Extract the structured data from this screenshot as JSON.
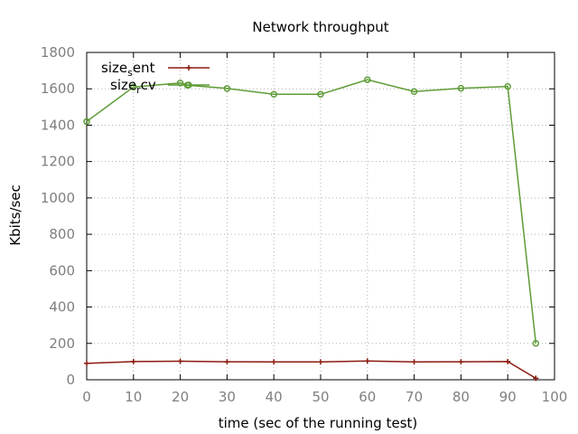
{
  "chart_data": {
    "type": "line",
    "title": "Network throughput",
    "xlabel": "time (sec of the running test)",
    "ylabel": "Kbits/sec",
    "xlim": [
      0,
      100
    ],
    "ylim": [
      0,
      1800
    ],
    "xticks": [
      "0",
      "10",
      "20",
      "30",
      "40",
      "50",
      "60",
      "70",
      "80",
      "90",
      "100"
    ],
    "yticks": [
      "0",
      "200",
      "400",
      "600",
      "800",
      "1000",
      "1200",
      "1400",
      "1600",
      "1800"
    ],
    "grid": true,
    "legend_position": "top-left",
    "series": [
      {
        "name": "size_sent",
        "legend": {
          "base": "size",
          "sub": "s",
          "rest": "ent"
        },
        "color": "#8b1a0e",
        "marker": "plus",
        "points": [
          [
            0,
            90
          ],
          [
            10,
            100
          ],
          [
            20,
            102
          ],
          [
            30,
            99
          ],
          [
            40,
            98
          ],
          [
            50,
            98
          ],
          [
            60,
            103
          ],
          [
            70,
            98
          ],
          [
            80,
            99
          ],
          [
            90,
            100
          ],
          [
            96,
            8
          ]
        ]
      },
      {
        "name": "size_rcv",
        "legend": {
          "base": "size",
          "sub": "r",
          "rest": "cv"
        },
        "color": "#5e9c36",
        "marker": "circle",
        "points": [
          [
            0,
            1420
          ],
          [
            10,
            1610
          ],
          [
            20,
            1632
          ],
          [
            21.5,
            1620
          ],
          [
            30,
            1602
          ],
          [
            40,
            1570
          ],
          [
            50,
            1570
          ],
          [
            60,
            1650
          ],
          [
            70,
            1585
          ],
          [
            80,
            1603
          ],
          [
            90,
            1613
          ],
          [
            96,
            200
          ]
        ]
      }
    ]
  }
}
